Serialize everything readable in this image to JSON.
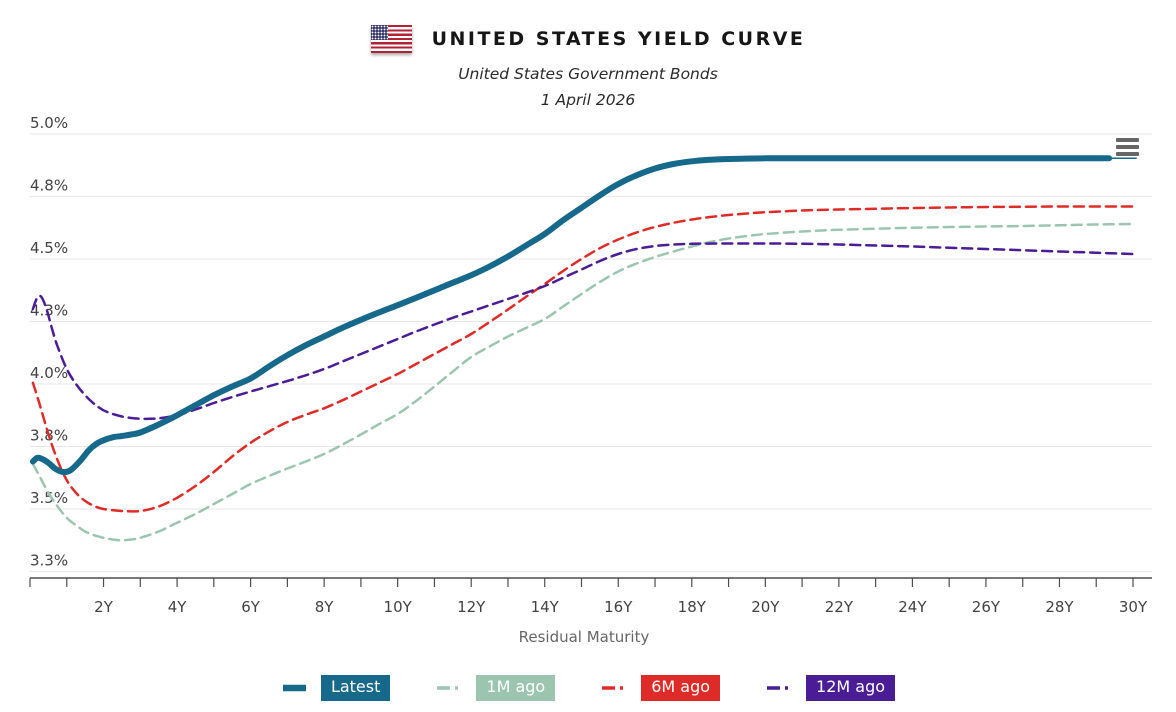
{
  "chart_data": {
    "type": "line",
    "title": "UNITED STATES YIELD CURVE",
    "subtitle": "United States Government Bonds",
    "date_label": "1 April 2026",
    "xlabel": "Residual Maturity",
    "ylabel": "",
    "x_unit": "years",
    "xlim_years": [
      0,
      30.5
    ],
    "ylim": [
      3.25,
      5.0
    ],
    "grid": true,
    "legend_position": "bottom",
    "y_ticks": [
      {
        "value": 5.0,
        "label": "5.0%"
      },
      {
        "value": 4.75,
        "label": "4.8%"
      },
      {
        "value": 4.5,
        "label": "4.5%"
      },
      {
        "value": 4.25,
        "label": "4.3%"
      },
      {
        "value": 4.0,
        "label": "4.0%"
      },
      {
        "value": 3.75,
        "label": "3.8%"
      },
      {
        "value": 3.5,
        "label": "3.5%"
      },
      {
        "value": 3.25,
        "label": "3.3%"
      }
    ],
    "x_major_ticks": [
      {
        "year": 2,
        "label": "2Y"
      },
      {
        "year": 4,
        "label": "4Y"
      },
      {
        "year": 6,
        "label": "6Y"
      },
      {
        "year": 8,
        "label": "8Y"
      },
      {
        "year": 10,
        "label": "10Y"
      },
      {
        "year": 12,
        "label": "12Y"
      },
      {
        "year": 14,
        "label": "14Y"
      },
      {
        "year": 16,
        "label": "16Y"
      },
      {
        "year": 18,
        "label": "18Y"
      },
      {
        "year": 20,
        "label": "20Y"
      },
      {
        "year": 22,
        "label": "22Y"
      },
      {
        "year": 24,
        "label": "24Y"
      },
      {
        "year": 26,
        "label": "26Y"
      },
      {
        "year": 28,
        "label": "28Y"
      },
      {
        "year": 30,
        "label": "30Y"
      }
    ],
    "x_minor_tick_step_years": 1,
    "series": [
      {
        "name": "Latest",
        "color": "#17698c",
        "line_style": "solid",
        "line_width": 6,
        "thin_tail_to_year": 30.1,
        "points": [
          [
            0.08,
            3.69
          ],
          [
            0.2,
            3.705
          ],
          [
            0.33,
            3.7
          ],
          [
            0.5,
            3.685
          ],
          [
            0.7,
            3.66
          ],
          [
            0.9,
            3.648
          ],
          [
            1.1,
            3.655
          ],
          [
            1.35,
            3.69
          ],
          [
            1.6,
            3.735
          ],
          [
            1.8,
            3.76
          ],
          [
            2,
            3.775
          ],
          [
            2.25,
            3.787
          ],
          [
            2.5,
            3.792
          ],
          [
            2.75,
            3.798
          ],
          [
            3,
            3.806
          ],
          [
            3.5,
            3.838
          ],
          [
            4,
            3.875
          ],
          [
            4.5,
            3.915
          ],
          [
            5,
            3.955
          ],
          [
            5.5,
            3.99
          ],
          [
            6,
            4.022
          ],
          [
            6.5,
            4.07
          ],
          [
            7,
            4.115
          ],
          [
            7.5,
            4.155
          ],
          [
            8,
            4.19
          ],
          [
            8.5,
            4.225
          ],
          [
            9,
            4.257
          ],
          [
            9.5,
            4.287
          ],
          [
            10,
            4.315
          ],
          [
            10.5,
            4.345
          ],
          [
            11,
            4.375
          ],
          [
            11.5,
            4.405
          ],
          [
            12,
            4.435
          ],
          [
            12.5,
            4.47
          ],
          [
            13,
            4.51
          ],
          [
            13.5,
            4.555
          ],
          [
            14,
            4.6
          ],
          [
            14.5,
            4.655
          ],
          [
            15,
            4.705
          ],
          [
            15.5,
            4.755
          ],
          [
            16,
            4.8
          ],
          [
            16.5,
            4.835
          ],
          [
            17,
            4.862
          ],
          [
            17.5,
            4.88
          ],
          [
            18,
            4.891
          ],
          [
            18.5,
            4.897
          ],
          [
            19,
            4.9
          ],
          [
            20,
            4.903
          ],
          [
            21,
            4.903
          ],
          [
            22,
            4.903
          ],
          [
            23,
            4.903
          ],
          [
            24,
            4.903
          ],
          [
            25,
            4.903
          ],
          [
            26,
            4.903
          ],
          [
            27,
            4.903
          ],
          [
            28,
            4.903
          ],
          [
            29,
            4.903
          ],
          [
            29.35,
            4.903
          ]
        ]
      },
      {
        "name": "1M ago",
        "color": "#9cc5af",
        "line_style": "dashed",
        "line_width": 2.5,
        "points": [
          [
            0.08,
            3.68
          ],
          [
            0.3,
            3.62
          ],
          [
            0.5,
            3.565
          ],
          [
            0.75,
            3.51
          ],
          [
            1,
            3.465
          ],
          [
            1.25,
            3.435
          ],
          [
            1.5,
            3.41
          ],
          [
            1.75,
            3.395
          ],
          [
            2,
            3.385
          ],
          [
            2.25,
            3.378
          ],
          [
            2.5,
            3.375
          ],
          [
            2.75,
            3.378
          ],
          [
            3,
            3.385
          ],
          [
            3.5,
            3.41
          ],
          [
            4,
            3.445
          ],
          [
            4.5,
            3.48
          ],
          [
            5,
            3.52
          ],
          [
            5.5,
            3.56
          ],
          [
            6,
            3.6
          ],
          [
            6.5,
            3.632
          ],
          [
            7,
            3.662
          ],
          [
            7.5,
            3.69
          ],
          [
            8,
            3.72
          ],
          [
            8.5,
            3.758
          ],
          [
            9,
            3.798
          ],
          [
            9.5,
            3.84
          ],
          [
            10,
            3.88
          ],
          [
            10.5,
            3.932
          ],
          [
            11,
            3.99
          ],
          [
            11.5,
            4.05
          ],
          [
            12,
            4.108
          ],
          [
            12.5,
            4.15
          ],
          [
            13,
            4.19
          ],
          [
            13.5,
            4.225
          ],
          [
            14,
            4.26
          ],
          [
            14.5,
            4.31
          ],
          [
            15,
            4.36
          ],
          [
            15.5,
            4.408
          ],
          [
            16,
            4.45
          ],
          [
            16.5,
            4.482
          ],
          [
            17,
            4.508
          ],
          [
            17.5,
            4.53
          ],
          [
            18,
            4.55
          ],
          [
            18.5,
            4.568
          ],
          [
            19,
            4.582
          ],
          [
            19.5,
            4.592
          ],
          [
            20,
            4.6
          ],
          [
            21,
            4.61
          ],
          [
            22,
            4.617
          ],
          [
            23,
            4.621
          ],
          [
            24,
            4.625
          ],
          [
            25,
            4.628
          ],
          [
            26,
            4.63
          ],
          [
            27,
            4.632
          ],
          [
            28,
            4.635
          ],
          [
            29,
            4.638
          ],
          [
            30,
            4.64
          ]
        ]
      },
      {
        "name": "6M ago",
        "color": "#df2b27",
        "line_style": "dashed",
        "line_width": 2.5,
        "points": [
          [
            0.08,
            4.005
          ],
          [
            0.25,
            3.925
          ],
          [
            0.5,
            3.8
          ],
          [
            0.75,
            3.695
          ],
          [
            1,
            3.615
          ],
          [
            1.25,
            3.565
          ],
          [
            1.5,
            3.532
          ],
          [
            1.75,
            3.512
          ],
          [
            2,
            3.5
          ],
          [
            2.5,
            3.492
          ],
          [
            3,
            3.492
          ],
          [
            3.5,
            3.51
          ],
          [
            4,
            3.545
          ],
          [
            4.5,
            3.592
          ],
          [
            5,
            3.648
          ],
          [
            5.5,
            3.71
          ],
          [
            6,
            3.765
          ],
          [
            6.5,
            3.81
          ],
          [
            7,
            3.848
          ],
          [
            7.5,
            3.877
          ],
          [
            8,
            3.903
          ],
          [
            8.5,
            3.935
          ],
          [
            9,
            3.97
          ],
          [
            9.5,
            4.005
          ],
          [
            10,
            4.04
          ],
          [
            10.5,
            4.08
          ],
          [
            11,
            4.12
          ],
          [
            11.5,
            4.16
          ],
          [
            12,
            4.2
          ],
          [
            12.5,
            4.248
          ],
          [
            13,
            4.298
          ],
          [
            13.5,
            4.35
          ],
          [
            14,
            4.4
          ],
          [
            14.5,
            4.452
          ],
          [
            15,
            4.5
          ],
          [
            15.5,
            4.543
          ],
          [
            16,
            4.578
          ],
          [
            16.5,
            4.606
          ],
          [
            17,
            4.628
          ],
          [
            17.5,
            4.645
          ],
          [
            18,
            4.658
          ],
          [
            18.5,
            4.668
          ],
          [
            19,
            4.676
          ],
          [
            19.5,
            4.682
          ],
          [
            20,
            4.687
          ],
          [
            21,
            4.694
          ],
          [
            22,
            4.698
          ],
          [
            23,
            4.701
          ],
          [
            24,
            4.704
          ],
          [
            25,
            4.706
          ],
          [
            26,
            4.708
          ],
          [
            27,
            4.709
          ],
          [
            28,
            4.71
          ],
          [
            29,
            4.71
          ],
          [
            30,
            4.71
          ]
        ]
      },
      {
        "name": "12M ago",
        "color": "#4a1d96",
        "line_style": "dashed",
        "line_width": 2.5,
        "points": [
          [
            0.08,
            4.3
          ],
          [
            0.18,
            4.34
          ],
          [
            0.3,
            4.35
          ],
          [
            0.45,
            4.3
          ],
          [
            0.6,
            4.22
          ],
          [
            0.75,
            4.15
          ],
          [
            1,
            4.06
          ],
          [
            1.25,
            4.0
          ],
          [
            1.5,
            3.955
          ],
          [
            1.75,
            3.92
          ],
          [
            2,
            3.895
          ],
          [
            2.25,
            3.88
          ],
          [
            2.5,
            3.87
          ],
          [
            2.75,
            3.864
          ],
          [
            3,
            3.861
          ],
          [
            3.25,
            3.861
          ],
          [
            3.5,
            3.863
          ],
          [
            4,
            3.875
          ],
          [
            4.5,
            3.898
          ],
          [
            5,
            3.924
          ],
          [
            5.5,
            3.948
          ],
          [
            6,
            3.97
          ],
          [
            6.5,
            3.991
          ],
          [
            7,
            4.012
          ],
          [
            7.5,
            4.035
          ],
          [
            8,
            4.06
          ],
          [
            8.5,
            4.09
          ],
          [
            9,
            4.12
          ],
          [
            9.5,
            4.15
          ],
          [
            10,
            4.18
          ],
          [
            10.5,
            4.21
          ],
          [
            11,
            4.238
          ],
          [
            11.5,
            4.265
          ],
          [
            12,
            4.29
          ],
          [
            12.5,
            4.315
          ],
          [
            13,
            4.34
          ],
          [
            13.5,
            4.365
          ],
          [
            14,
            4.392
          ],
          [
            14.5,
            4.425
          ],
          [
            15,
            4.458
          ],
          [
            15.5,
            4.492
          ],
          [
            16,
            4.52
          ],
          [
            16.5,
            4.54
          ],
          [
            17,
            4.552
          ],
          [
            17.5,
            4.558
          ],
          [
            18,
            4.561
          ],
          [
            19,
            4.562
          ],
          [
            20,
            4.562
          ],
          [
            21,
            4.561
          ],
          [
            22,
            4.558
          ],
          [
            23,
            4.554
          ],
          [
            24,
            4.55
          ],
          [
            25,
            4.545
          ],
          [
            26,
            4.54
          ],
          [
            27,
            4.535
          ],
          [
            28,
            4.53
          ],
          [
            29,
            4.525
          ],
          [
            30,
            4.52
          ]
        ]
      }
    ]
  },
  "legend": {
    "items": [
      {
        "label": "Latest",
        "swatch": "solid-line-icon"
      },
      {
        "label": "1M ago",
        "swatch": "dash-dot-line-icon"
      },
      {
        "label": "6M ago",
        "swatch": "dash-dot-line-icon"
      },
      {
        "label": "12M ago",
        "swatch": "dash-dot-line-icon"
      }
    ]
  }
}
